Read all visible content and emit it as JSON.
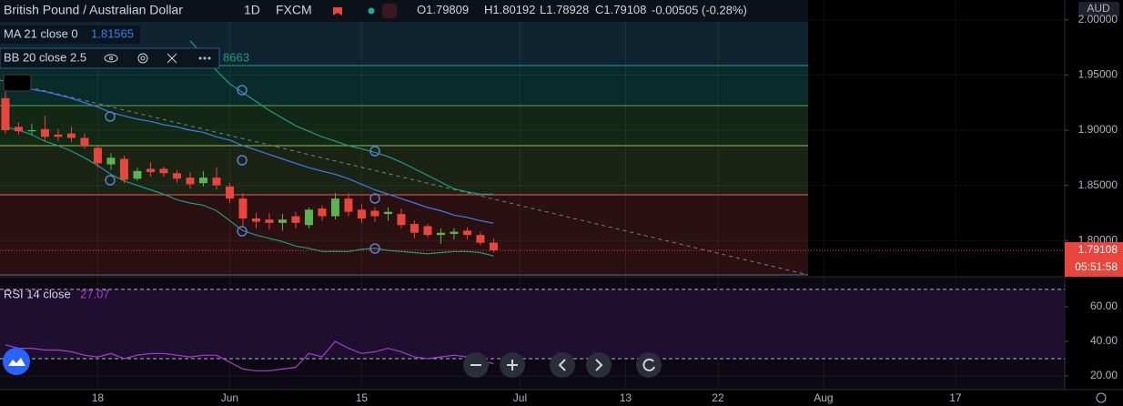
{
  "header": {
    "symbol": "British Pound / Australian Dollar",
    "interval": "1D",
    "exchange": "FXCM",
    "ohlc_prefixes": [
      "O",
      "H",
      "L",
      "C"
    ],
    "change": "-0.00505 (-0.28%)"
  },
  "chart_data": [
    {
      "type": "candlestick",
      "currency": "AUD",
      "countdown": "05:51:58",
      "up_color": "#5bb450",
      "down_color": "#e8453c",
      "grid": true,
      "open": [
        1.929,
        1.903,
        1.899,
        1.901,
        1.896,
        1.897,
        1.893,
        1.884,
        1.869,
        1.874,
        1.856,
        1.865,
        1.865,
        1.861,
        1.857,
        1.852,
        1.857,
        1.849,
        1.838,
        1.82,
        1.819,
        1.816,
        1.822,
        1.814,
        1.829,
        1.822,
        1.838,
        1.828,
        1.827,
        1.824,
        1.824,
        1.815,
        1.813,
        1.805,
        1.806,
        1.809,
        1.805,
        1.79809
      ],
      "high": [
        1.936,
        1.907,
        1.906,
        1.913,
        1.901,
        1.903,
        1.897,
        1.886,
        1.879,
        1.877,
        1.866,
        1.871,
        1.867,
        1.864,
        1.862,
        1.863,
        1.866,
        1.852,
        1.843,
        1.825,
        1.825,
        1.824,
        1.826,
        1.83,
        1.832,
        1.843,
        1.843,
        1.833,
        1.83,
        1.83,
        1.829,
        1.818,
        1.815,
        1.811,
        1.811,
        1.812,
        1.808,
        1.80192
      ],
      "low": [
        1.897,
        1.896,
        1.895,
        1.89,
        1.89,
        1.889,
        1.883,
        1.866,
        1.864,
        1.852,
        1.854,
        1.858,
        1.858,
        1.852,
        1.847,
        1.849,
        1.846,
        1.834,
        1.812,
        1.811,
        1.81,
        1.809,
        1.811,
        1.811,
        1.818,
        1.819,
        1.822,
        1.816,
        1.817,
        1.818,
        1.811,
        1.802,
        1.803,
        1.797,
        1.801,
        1.801,
        1.796,
        1.78928
      ],
      "close": [
        1.9,
        1.899,
        1.9,
        1.894,
        1.894,
        1.893,
        1.886,
        1.87,
        1.875,
        1.855,
        1.863,
        1.862,
        1.861,
        1.856,
        1.851,
        1.857,
        1.85,
        1.838,
        1.82,
        1.817,
        1.816,
        1.819,
        1.816,
        1.828,
        1.822,
        1.838,
        1.826,
        1.82,
        1.822,
        1.826,
        1.814,
        1.807,
        1.805,
        1.807,
        1.808,
        1.805,
        1.798,
        1.79108
      ],
      "xlim": [
        -0.41,
        80.28
      ],
      "xticks": [
        {
          "value": 7,
          "label": "18"
        },
        {
          "value": 17,
          "label": "Jun"
        },
        {
          "value": 27,
          "label": "15"
        },
        {
          "value": 39,
          "label": "Jul"
        },
        {
          "value": 47,
          "label": "13"
        },
        {
          "value": 54,
          "label": "22"
        },
        {
          "value": 62,
          "label": "Aug"
        },
        {
          "value": 72,
          "label": "17"
        }
      ],
      "ylim": [
        1.768,
        2.018
      ],
      "yticks": [
        {
          "value": 1.8,
          "label": "1.80000"
        },
        {
          "value": 1.85,
          "label": "1.85000"
        },
        {
          "value": 1.9,
          "label": "1.90000"
        },
        {
          "value": 1.95,
          "label": "1.95000"
        },
        {
          "value": 2,
          "label": "2.00000"
        }
      ],
      "ma": {
        "name": "MA 21 close 0",
        "color": "#3d7de8",
        "values": [
          null,
          1.94,
          1.937,
          1.935,
          1.932,
          1.929,
          1.925,
          1.921,
          1.916,
          1.913,
          1.91,
          1.908,
          1.905,
          1.903,
          1.9,
          1.898,
          1.894,
          1.891,
          1.886,
          1.882,
          1.878,
          1.874,
          1.87,
          1.866,
          1.863,
          1.86,
          1.856,
          1.851,
          1.846,
          1.842,
          1.838,
          1.834,
          1.83,
          1.827,
          1.823,
          1.821,
          1.818,
          1.81565
        ]
      },
      "bb": {
        "name": "BB 20 close 2.5",
        "color": "#1e9a8a",
        "value_text": "8663",
        "upper": [
          null,
          null,
          null,
          null,
          null,
          null,
          null,
          null,
          null,
          null,
          null,
          null,
          null,
          null,
          1.981,
          1.968,
          1.954,
          1.942,
          1.934,
          1.926,
          1.918,
          1.911,
          1.904,
          1.899,
          1.894,
          1.89,
          1.886,
          1.883,
          1.88,
          1.876,
          1.871,
          1.865,
          1.859,
          1.853,
          1.847,
          1.844,
          1.842,
          1.842
        ],
        "lower": [
          1.903,
          1.9,
          1.896,
          1.89,
          1.886,
          1.881,
          1.875,
          1.868,
          1.86,
          1.854,
          1.85,
          1.846,
          1.842,
          1.837,
          1.834,
          1.832,
          1.827,
          1.818,
          1.809,
          1.805,
          1.802,
          1.799,
          1.795,
          1.793,
          1.79,
          1.79,
          1.79,
          1.792,
          1.793,
          1.791,
          1.79,
          1.789,
          1.788,
          1.789,
          1.79,
          1.79,
          1.789,
          1.786
        ]
      }
    },
    {
      "type": "line",
      "name": "RSI 14 close",
      "color": "#a63fc4",
      "values": [
        38,
        36,
        36,
        35,
        35,
        34,
        32,
        31,
        33,
        30,
        32,
        33,
        33,
        32,
        31,
        32,
        32,
        28,
        24,
        23,
        23,
        24,
        25,
        33,
        31,
        40,
        36,
        33,
        34,
        36,
        34,
        31,
        30,
        31,
        32,
        31,
        29,
        27.07
      ],
      "ylim": [
        12.1,
        76.8
      ],
      "yticks": [
        {
          "value": 20,
          "label": "20.00"
        },
        {
          "value": 40,
          "label": "40.00"
        },
        {
          "value": 60,
          "label": "60.00"
        }
      ],
      "bands": [
        30,
        70
      ]
    }
  ]
}
